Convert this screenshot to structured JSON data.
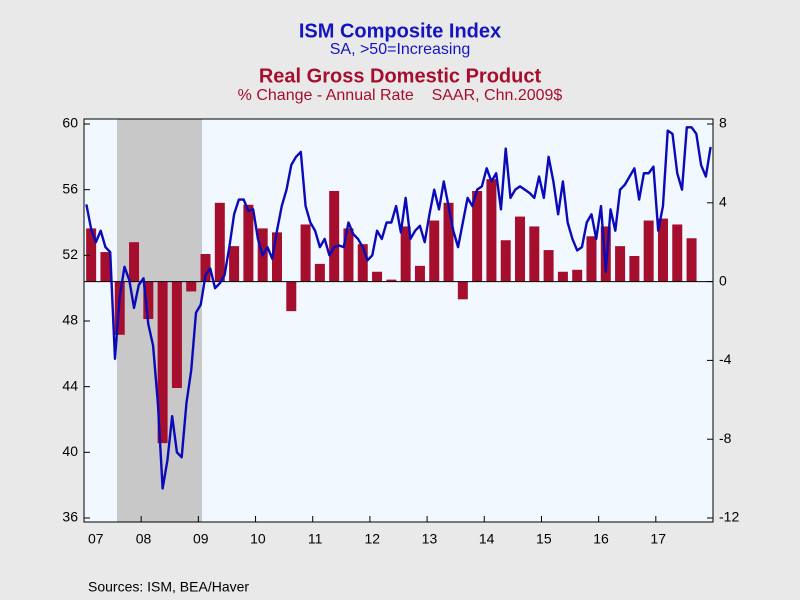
{
  "chart_data": {
    "type": "bar_line",
    "title": "ISM Composite Index",
    "subtitle": "SA, >50=Increasing",
    "title2": "Real Gross Domestic Product",
    "subtitle2": "% Change - Annual Rate    SAAR, Chn.2009$",
    "source": "Sources:  ISM, BEA/Haver",
    "categories": [
      "07",
      null,
      null,
      null,
      null,
      null,
      null,
      null,
      null,
      null,
      null,
      null,
      "08",
      null,
      null,
      null,
      null,
      null,
      null,
      null,
      null,
      null,
      null,
      null,
      "09",
      null,
      null,
      null,
      null,
      null,
      null,
      null,
      null,
      null,
      null,
      null,
      "10",
      null,
      null,
      null,
      null,
      null,
      null,
      null,
      null,
      null,
      null,
      null,
      "11",
      null,
      null,
      null,
      null,
      null,
      null,
      null,
      null,
      null,
      null,
      null,
      "12",
      null,
      null,
      null,
      null,
      null,
      null,
      null,
      null,
      null,
      null,
      null,
      "13",
      null,
      null,
      null,
      null,
      null,
      null,
      null,
      null,
      null,
      null,
      null,
      "14",
      null,
      null,
      null,
      null,
      null,
      null,
      null,
      null,
      null,
      null,
      null,
      "15",
      null,
      null,
      null,
      null,
      null,
      null,
      null,
      null,
      null,
      null,
      null,
      "16",
      null,
      null,
      null,
      null,
      null,
      null,
      null,
      null,
      null,
      null,
      null,
      "17",
      null,
      null,
      null,
      null,
      null,
      null,
      null,
      null,
      null,
      null,
      null
    ],
    "series": [
      {
        "type": "line",
        "axis": "y",
        "color": "#0a0ab8",
        "values": [
          55.1,
          53.6,
          52.8,
          53.5,
          52.5,
          52.2,
          45.7,
          49.5,
          51.3,
          50.5,
          48.8,
          50.2,
          50.6,
          47.8,
          46.5,
          43.0,
          37.8,
          39.5,
          42.2,
          40.0,
          39.7,
          43.0,
          45.0,
          48.5,
          49.0,
          50.8,
          51.2,
          50.0,
          50.3,
          50.8,
          52.5,
          54.5,
          55.4,
          55.4,
          54.7,
          54.8,
          53.0,
          52.0,
          52.5,
          51.8,
          53.5,
          55.0,
          56.0,
          57.5,
          58.0,
          58.3,
          55.0,
          54.0,
          53.5,
          52.5,
          53.0,
          52.0,
          52.5,
          52.6,
          52.5,
          54.0,
          53.3,
          53.0,
          52.5,
          51.7,
          52.0,
          53.5,
          53.0,
          54.0,
          54.0,
          55.0,
          53.4,
          55.5,
          53.0,
          53.5,
          53.8,
          52.8,
          54.5,
          56.0,
          54.8,
          56.5,
          55.0,
          53.5,
          52.5,
          54.0,
          55.5,
          55.0,
          56.0,
          56.2,
          57.3,
          56.5,
          57.0,
          54.8,
          58.5,
          55.5,
          56.0,
          56.2,
          56.0,
          55.8,
          55.5,
          56.8,
          55.5,
          58.0,
          56.5,
          54.5,
          56.5,
          54.0,
          53.0,
          52.3,
          52.5,
          54.0,
          54.5,
          53.0,
          55.0,
          51.0,
          54.8,
          53.5,
          56.0,
          56.3,
          56.8,
          57.3,
          55.4,
          57.0,
          57.0,
          57.4,
          53.5,
          55.0,
          59.6,
          59.4,
          57.0,
          56.0,
          59.8,
          59.8,
          59.4,
          57.5,
          56.8,
          58.6
        ]
      },
      {
        "type": "bar",
        "axis": "y2",
        "color": "#a50f2d",
        "values": [
          null,
          2.7,
          null,
          null,
          1.5,
          null,
          null,
          -2.7,
          null,
          null,
          2.0,
          null,
          null,
          -1.9,
          null,
          null,
          -8.2,
          null,
          null,
          -5.4,
          null,
          null,
          -0.5,
          null,
          null,
          1.4,
          null,
          null,
          4.0,
          null,
          null,
          1.8,
          null,
          null,
          3.9,
          null,
          null,
          2.7,
          null,
          null,
          2.5,
          null,
          null,
          -1.5,
          null,
          null,
          2.9,
          null,
          null,
          0.9,
          null,
          null,
          4.6,
          null,
          null,
          2.7,
          null,
          null,
          1.9,
          null,
          null,
          0.5,
          null,
          null,
          0.1,
          null,
          null,
          2.8,
          null,
          null,
          0.8,
          null,
          null,
          3.1,
          null,
          null,
          4.0,
          null,
          null,
          -0.9,
          null,
          null,
          4.6,
          null,
          null,
          5.2,
          null,
          null,
          2.1,
          null,
          null,
          3.3,
          null,
          null,
          2.8,
          null,
          null,
          1.6,
          null,
          null,
          0.5,
          null,
          null,
          0.6,
          null,
          null,
          2.3,
          null,
          null,
          2.8,
          null,
          null,
          1.8,
          null,
          null,
          1.3,
          null,
          null,
          3.1,
          null,
          null,
          3.2,
          null,
          null,
          2.9,
          null,
          null,
          2.2,
          null,
          null,
          null,
          null
        ]
      }
    ],
    "ylim": [
      36,
      60
    ],
    "yticks": [
      36,
      40,
      44,
      48,
      52,
      56,
      60
    ],
    "y2lim": [
      -12,
      8
    ],
    "y2ticks": [
      -12,
      -8,
      -4,
      0,
      4,
      8
    ]
  }
}
